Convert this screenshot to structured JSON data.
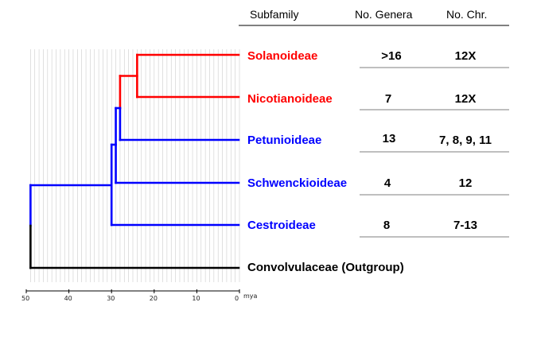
{
  "headers": {
    "subfamily": "Subfamily",
    "genera": "No. Genera",
    "chromosomes": "No. Chr."
  },
  "taxa": [
    {
      "name": "Solanoideae",
      "genera": ">16",
      "chromosomes": "12X",
      "color": "#ff0000"
    },
    {
      "name": "Nicotianoideae",
      "genera": "7",
      "chromosomes": "12X",
      "color": "#ff0000"
    },
    {
      "name": "Petunioideae",
      "genera": "13",
      "chromosomes": "7, 8, 9, 11",
      "color": "#0000ff"
    },
    {
      "name": "Schwenckioideae",
      "genera": "4",
      "chromosomes": "12",
      "color": "#0000ff"
    },
    {
      "name": "Cestroideae",
      "genera": "8",
      "chromosomes": "7-13",
      "color": "#0000ff"
    },
    {
      "name": "Convolvulaceae (Outgroup)",
      "genera": "",
      "chromosomes": "",
      "color": "#000000"
    }
  ],
  "axis": {
    "ticks": [
      "50",
      "40",
      "30",
      "20",
      "10",
      "0"
    ],
    "unit": "mya",
    "range_mya": [
      50,
      0
    ]
  },
  "tree": {
    "outgroup_root_mya": 49,
    "solanaceae_crown_mya": 30,
    "node_schwenckioideae_mya": 29,
    "node_petunioideae_mya": 28,
    "node_nicotianoideae_mya": 24
  },
  "colors": {
    "red": "#ff0000",
    "blue": "#0000ff",
    "black": "#000000",
    "grid": "#cccccc"
  }
}
